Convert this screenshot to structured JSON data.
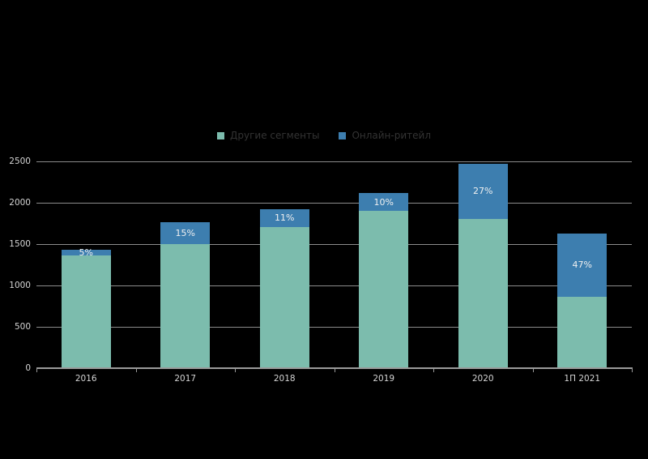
{
  "chart_data": {
    "type": "bar",
    "stacked": true,
    "title": "",
    "xlabel": "",
    "ylabel": "",
    "background": "#000000",
    "grid": true,
    "legend_position": "top",
    "categories": [
      "2016",
      "2017",
      "2018",
      "2019",
      "2020",
      "1П 2021"
    ],
    "series": [
      {
        "name": "Другие сегменты",
        "color": "#7cbcad",
        "values": [
          1360,
          1500,
          1710,
          1905,
          1805,
          865
        ]
      },
      {
        "name": "Онлайн-ритейл",
        "color": "#3d7eaf",
        "values": [
          70,
          265,
          210,
          210,
          665,
          765
        ]
      }
    ],
    "totals": [
      1430,
      1765,
      1920,
      2115,
      2470,
      1630
    ],
    "bar_labels": [
      "5%",
      "15%",
      "11%",
      "10%",
      "27%",
      "47%"
    ],
    "ylim": [
      0,
      2500
    ],
    "yticks": [
      0,
      500,
      1000,
      1500,
      2000,
      2500
    ],
    "y_tick_labels": [
      "0",
      "500",
      "1000",
      "1500",
      "2000",
      "2500"
    ]
  },
  "colors": {
    "grid": "#8c8c8c",
    "axis": "#9a9a9a",
    "tick_label": "#d4d4d4",
    "legend_text": "#333333",
    "bar_value_label": "#f0f0f0"
  }
}
